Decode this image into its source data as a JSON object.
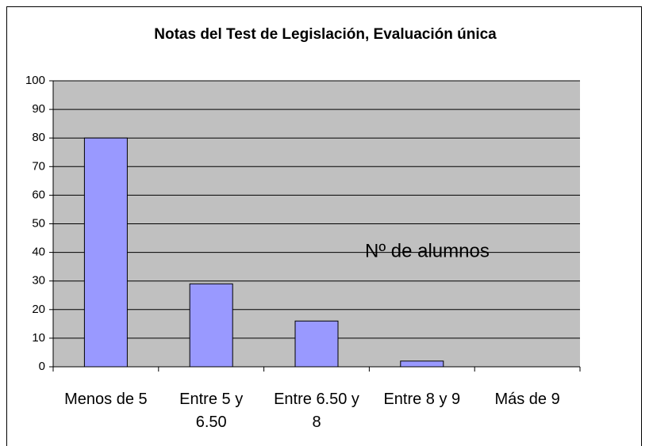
{
  "chart_data": {
    "type": "bar",
    "title": "Notas del Test de Legislación, Evaluación única",
    "categories": [
      "Menos de 5",
      "Entre 5 y 6.50",
      "Entre 6.50 y 8",
      "Entre 8 y 9",
      "Más de 9"
    ],
    "series": [
      {
        "name": "Nº de alumnos",
        "color": "#9999ff",
        "values": [
          80,
          29,
          16,
          2,
          0
        ]
      }
    ],
    "ylim": [
      0,
      100
    ],
    "yticks": [
      0,
      10,
      20,
      30,
      40,
      50,
      60,
      70,
      80,
      90,
      100
    ],
    "grid": true
  }
}
